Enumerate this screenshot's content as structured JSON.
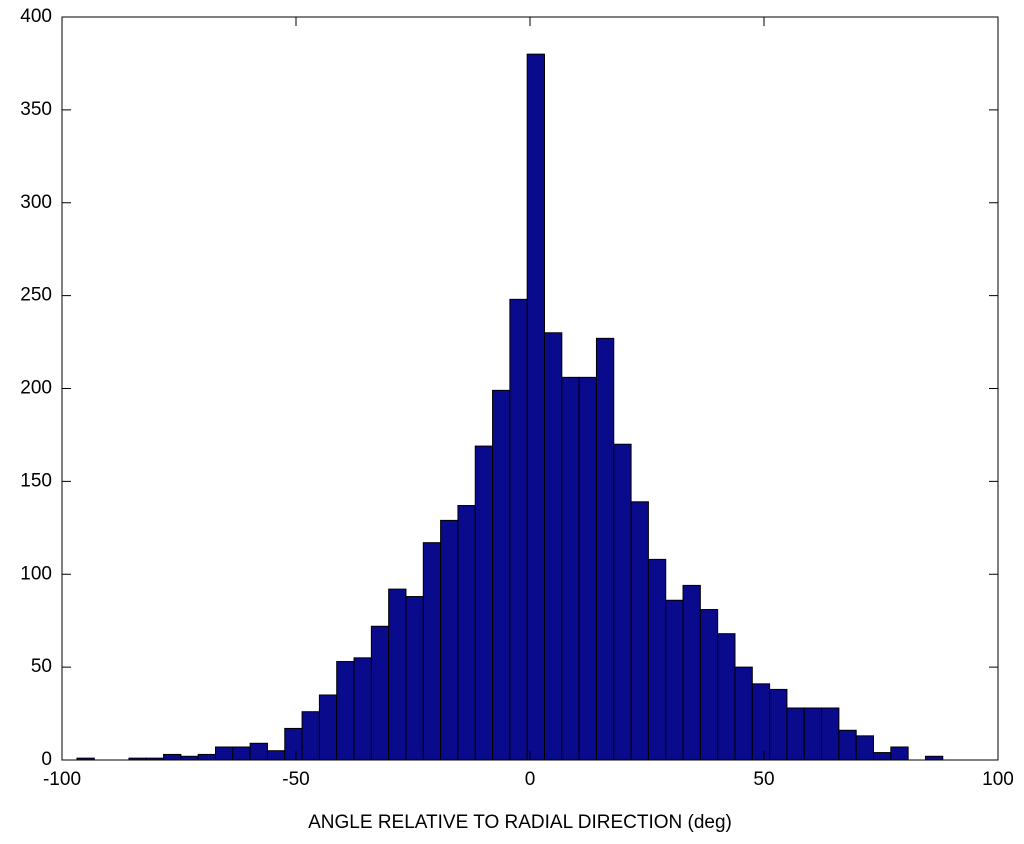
{
  "chart_data": {
    "type": "histogram",
    "xlabel": "ANGLE RELATIVE TO RADIAL DIRECTION (deg)",
    "bins": [
      -96.8,
      -93.1,
      -89.4,
      -85.7,
      -82.0,
      -78.3,
      -74.6,
      -70.9,
      -67.2,
      -63.5,
      -59.8,
      -56.1,
      -52.4,
      -48.7,
      -45.0,
      -41.3,
      -37.6,
      -33.9,
      -30.2,
      -26.5,
      -22.8,
      -19.1,
      -15.4,
      -11.7,
      -8.0,
      -4.3,
      -0.6,
      3.1,
      6.8,
      10.5,
      14.2,
      17.9,
      21.6,
      25.3,
      29.0,
      32.7,
      36.4,
      40.1,
      43.8,
      47.5,
      51.2,
      54.9,
      58.6,
      62.3,
      66.0,
      69.7,
      73.4,
      77.1,
      80.8,
      84.5,
      88.2
    ],
    "values": [
      1,
      0,
      0,
      1,
      1,
      3,
      2,
      3,
      7,
      7,
      9,
      5,
      17,
      26,
      35,
      53,
      55,
      72,
      92,
      88,
      117,
      129,
      137,
      169,
      199,
      248,
      380,
      230,
      206,
      206,
      227,
      170,
      139,
      108,
      86,
      94,
      81,
      68,
      50,
      41,
      38,
      28,
      28,
      28,
      16,
      13,
      4,
      7,
      0,
      2
    ],
    "color": "#0a0a8c",
    "xlim": [
      -100,
      100
    ],
    "xticks": [
      -100,
      -50,
      0,
      50,
      100
    ],
    "ylim": [
      0,
      400
    ],
    "yticks": [
      0,
      50,
      100,
      150,
      200,
      250,
      300,
      350,
      400
    ]
  }
}
